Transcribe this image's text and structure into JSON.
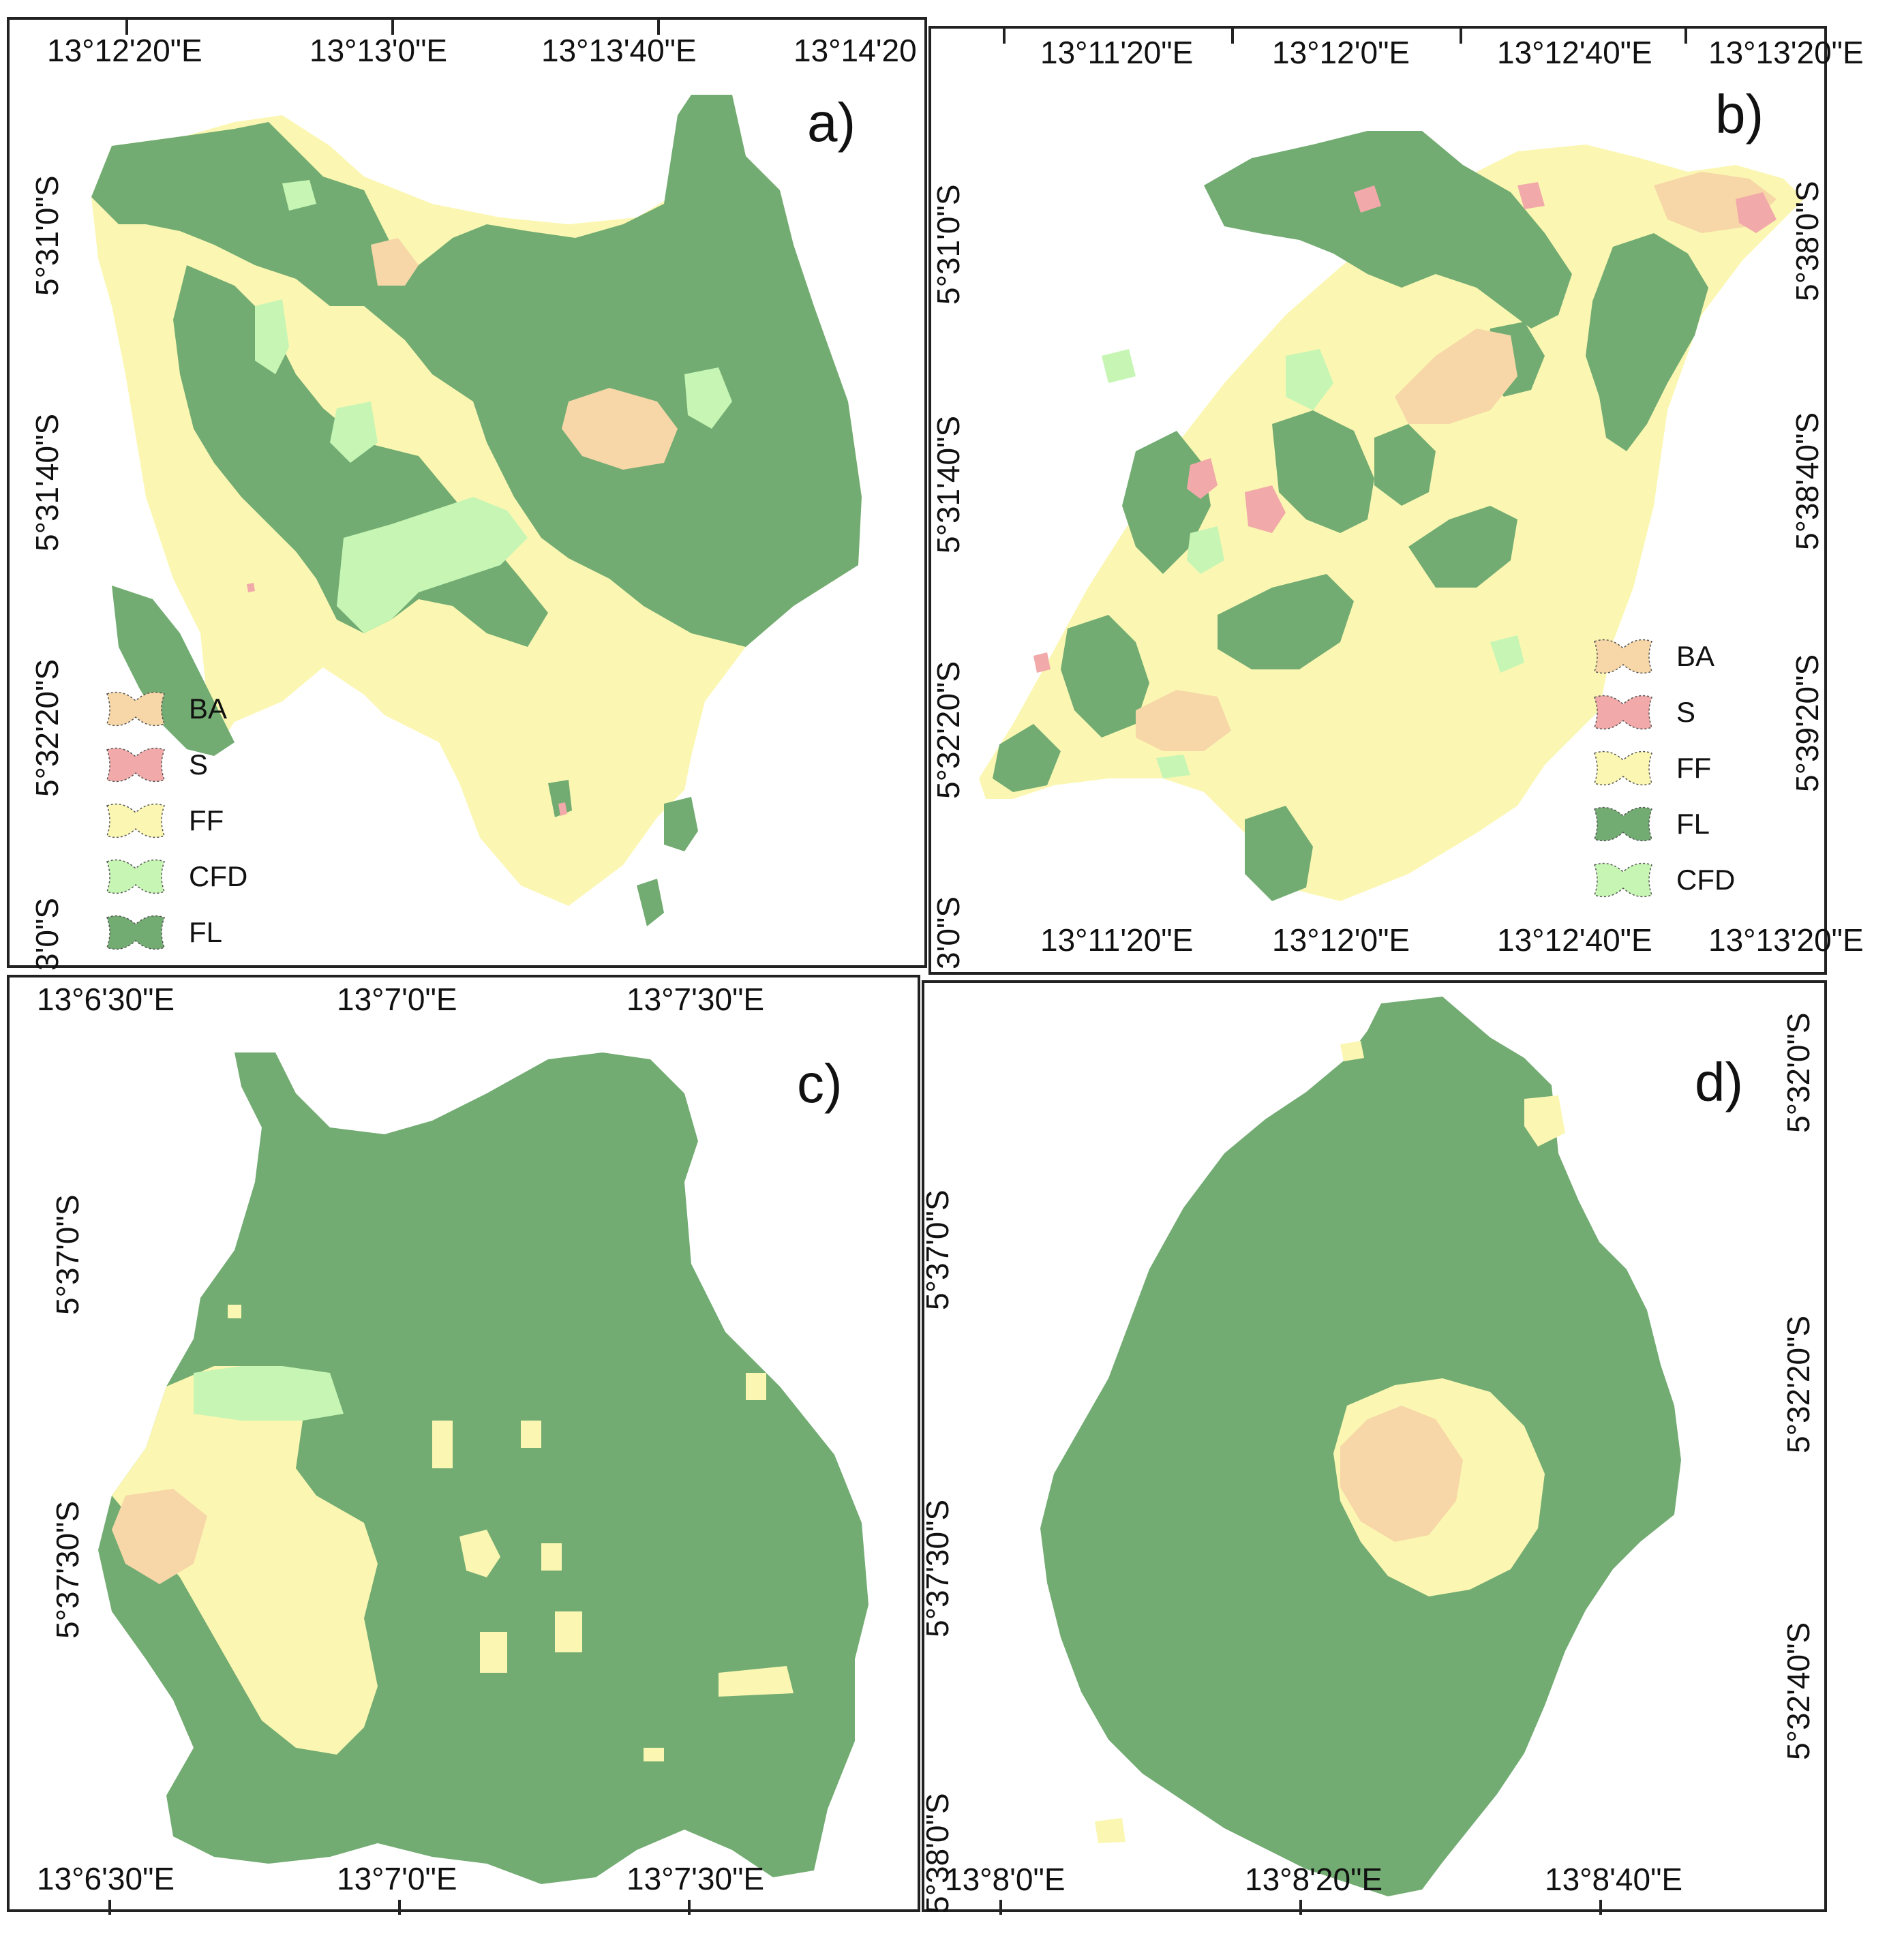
{
  "colors": {
    "BA": "#f7d7a8",
    "S": "#f2a9a9",
    "FF": "#fbf7b2",
    "CFD": "#c6f5b4",
    "FL": "#72ac72",
    "frame": "#222222"
  },
  "legend_a": [
    {
      "code": "BA",
      "label": "BA"
    },
    {
      "code": "S",
      "label": "S"
    },
    {
      "code": "FF",
      "label": "FF"
    },
    {
      "code": "CFD",
      "label": "CFD"
    },
    {
      "code": "FL",
      "label": "FL"
    }
  ],
  "legend_b": [
    {
      "code": "BA",
      "label": "BA"
    },
    {
      "code": "S",
      "label": "S"
    },
    {
      "code": "FF",
      "label": "FF"
    },
    {
      "code": "FL",
      "label": "FL"
    },
    {
      "code": "CFD",
      "label": "CFD"
    }
  ],
  "panel_a": {
    "label": "a)",
    "top_ticks": [
      "13°12'20\"E",
      "13°13'0\"E",
      "13°13'40\"E",
      "13°14'20"
    ],
    "left_ticks": [
      "5°31'0\"S",
      "5°31'40\"S",
      "5°32'20\"S",
      "3'0\"S"
    ]
  },
  "panel_b": {
    "label": "b)",
    "top_ticks": [
      "13°11'20\"E",
      "13°12'0\"E",
      "13°12'40\"E",
      "13°13'20\"E"
    ],
    "bottom_ticks": [
      "13°11'20\"E",
      "13°12'0\"E",
      "13°12'40\"E",
      "13°13'20\"E"
    ],
    "left_ticks": [
      "5°31'0\"S",
      "5°31'40\"S",
      "5°32'20\"S",
      "3'0\"S"
    ],
    "right_ticks": [
      "5°38'0\"S",
      "5°38'40\"S",
      "5°39'20\"S"
    ]
  },
  "panel_c": {
    "label": "c)",
    "top_ticks": [
      "13°6'30\"E",
      "13°7'0\"E",
      "13°7'30\"E"
    ],
    "bottom_ticks": [
      "13°6'30\"E",
      "13°7'0\"E",
      "13°7'30\"E"
    ],
    "left_ticks": [
      "5°37'0\"S",
      "5°37'30\"S"
    ]
  },
  "panel_d": {
    "label": "d)",
    "bottom_ticks": [
      "13°8'0\"E",
      "13°8'20\"E",
      "13°8'40\"E"
    ],
    "left_ticks": [
      "5°37'0\"S",
      "5°37'30\"S",
      "5°38'0\"S"
    ],
    "right_ticks": [
      "5°32'0\"S",
      "5°32'20\"S",
      "5°32'40\"S"
    ]
  }
}
